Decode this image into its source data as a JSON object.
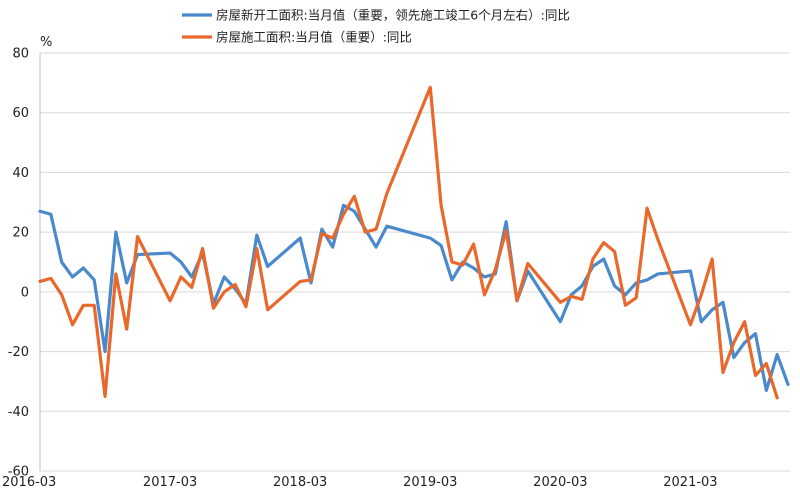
{
  "chart_data": {
    "type": "line",
    "unit_label": "%",
    "ylim": [
      -60,
      80
    ],
    "y_ticks": [
      "80",
      "60",
      "40",
      "20",
      "0",
      "-20",
      "-40",
      "-60"
    ],
    "x_ticks": [
      "2016-03",
      "2017-03",
      "2018-03",
      "2019-03",
      "2020-03",
      "2021-03"
    ],
    "grid": true,
    "legend_position": "top",
    "series": [
      {
        "name": "房屋新开工面积:当月值（重要，领先施工竣工6个月左右）:同比",
        "color": "#4A89CB",
        "points": [
          [
            "2016-03",
            27
          ],
          [
            "2016-04",
            26
          ],
          [
            "2016-05",
            10
          ],
          [
            "2016-06",
            5
          ],
          [
            "2016-07",
            8
          ],
          [
            "2016-08",
            4
          ],
          [
            "2016-09",
            -20
          ],
          [
            "2016-10",
            20
          ],
          [
            "2016-11",
            3
          ],
          [
            "2016-12",
            12.5
          ],
          [
            "2017-03",
            13
          ],
          [
            "2017-04",
            10
          ],
          [
            "2017-05",
            5
          ],
          [
            "2017-06",
            13
          ],
          [
            "2017-07",
            -4
          ],
          [
            "2017-08",
            5
          ],
          [
            "2017-09",
            1
          ],
          [
            "2017-10",
            -4
          ],
          [
            "2017-11",
            19
          ],
          [
            "2017-12",
            8.5
          ],
          [
            "2018-03",
            18
          ],
          [
            "2018-04",
            3
          ],
          [
            "2018-05",
            21
          ],
          [
            "2018-06",
            15
          ],
          [
            "2018-07",
            29
          ],
          [
            "2018-08",
            27
          ],
          [
            "2018-09",
            21
          ],
          [
            "2018-10",
            15
          ],
          [
            "2018-11",
            22
          ],
          [
            "2019-03",
            18
          ],
          [
            "2019-04",
            15.5
          ],
          [
            "2019-05",
            4
          ],
          [
            "2019-06",
            10
          ],
          [
            "2019-07",
            8
          ],
          [
            "2019-08",
            5
          ],
          [
            "2019-09",
            6
          ],
          [
            "2019-10",
            23.5
          ],
          [
            "2019-11",
            -3
          ],
          [
            "2019-12",
            7
          ],
          [
            "2020-03",
            -10
          ],
          [
            "2020-04",
            -1
          ],
          [
            "2020-05",
            2
          ],
          [
            "2020-06",
            8.5
          ],
          [
            "2020-07",
            11
          ],
          [
            "2020-08",
            2
          ],
          [
            "2020-09",
            -1
          ],
          [
            "2020-10",
            3
          ],
          [
            "2020-11",
            4
          ],
          [
            "2020-12",
            6
          ],
          [
            "2021-03",
            7
          ],
          [
            "2021-04",
            -10
          ],
          [
            "2021-05",
            -6
          ],
          [
            "2021-06",
            -3.5
          ],
          [
            "2021-07",
            -22
          ],
          [
            "2021-08",
            -17
          ],
          [
            "2021-09",
            -14
          ],
          [
            "2021-10",
            -33
          ],
          [
            "2021-11",
            -21
          ],
          [
            "2021-12",
            -31
          ]
        ]
      },
      {
        "name": "房屋施工面积:当月值（重要）:同比",
        "color": "#E8692B",
        "points": [
          [
            "2016-03",
            3.5
          ],
          [
            "2016-04",
            4.5
          ],
          [
            "2016-05",
            -1
          ],
          [
            "2016-06",
            -11
          ],
          [
            "2016-07",
            -4.5
          ],
          [
            "2016-08",
            -4.5
          ],
          [
            "2016-09",
            -35
          ],
          [
            "2016-10",
            6
          ],
          [
            "2016-11",
            -12.5
          ],
          [
            "2016-12",
            18.5
          ],
          [
            "2017-03",
            -3
          ],
          [
            "2017-04",
            5
          ],
          [
            "2017-05",
            1.5
          ],
          [
            "2017-06",
            14.5
          ],
          [
            "2017-07",
            -5.5
          ],
          [
            "2017-08",
            0
          ],
          [
            "2017-09",
            2.5
          ],
          [
            "2017-10",
            -5
          ],
          [
            "2017-11",
            14.5
          ],
          [
            "2017-12",
            -6
          ],
          [
            "2018-03",
            3.5
          ],
          [
            "2018-04",
            4
          ],
          [
            "2018-05",
            19.5
          ],
          [
            "2018-06",
            18
          ],
          [
            "2018-07",
            26
          ],
          [
            "2018-08",
            32
          ],
          [
            "2018-09",
            20
          ],
          [
            "2018-10",
            21
          ],
          [
            "2018-11",
            33
          ],
          [
            "2019-03",
            68.5
          ],
          [
            "2019-04",
            29
          ],
          [
            "2019-05",
            10
          ],
          [
            "2019-06",
            9
          ],
          [
            "2019-07",
            16
          ],
          [
            "2019-08",
            -1
          ],
          [
            "2019-09",
            7.5
          ],
          [
            "2019-10",
            20.5
          ],
          [
            "2019-11",
            -3
          ],
          [
            "2019-12",
            9.5
          ],
          [
            "2020-03",
            -3.5
          ],
          [
            "2020-04",
            -1.5
          ],
          [
            "2020-05",
            -2.5
          ],
          [
            "2020-06",
            11
          ],
          [
            "2020-07",
            16.5
          ],
          [
            "2020-08",
            13.5
          ],
          [
            "2020-09",
            -4.5
          ],
          [
            "2020-10",
            -2
          ],
          [
            "2020-11",
            28
          ],
          [
            "2020-12",
            17.5
          ],
          [
            "2021-03",
            -11
          ],
          [
            "2021-04",
            -1
          ],
          [
            "2021-05",
            11
          ],
          [
            "2021-06",
            -27
          ],
          [
            "2021-07",
            -17
          ],
          [
            "2021-08",
            -10
          ],
          [
            "2021-09",
            -28
          ],
          [
            "2021-10",
            -24
          ],
          [
            "2021-11",
            -35.5
          ]
        ]
      }
    ]
  }
}
